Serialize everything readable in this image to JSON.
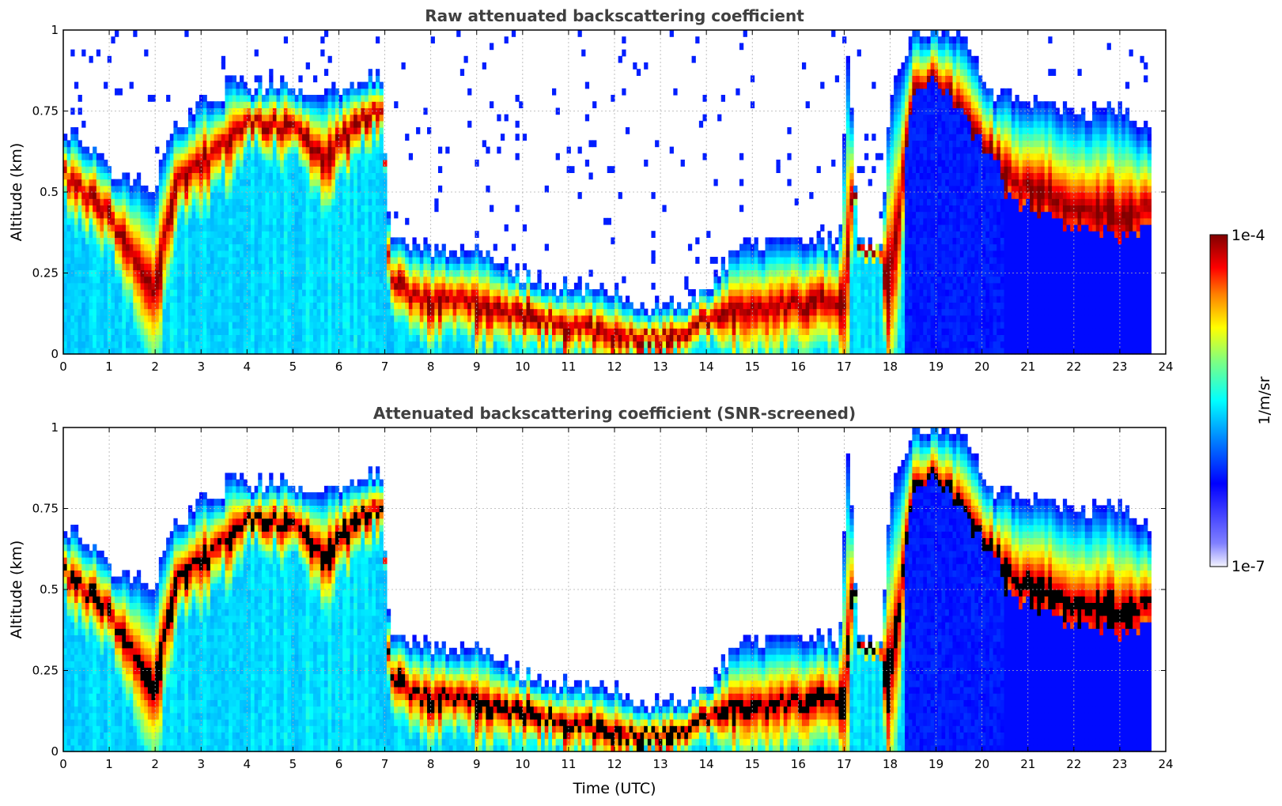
{
  "chart_data": [
    {
      "type": "heatmap",
      "title": "Raw attenuated backscattering coefficient",
      "xlabel": "",
      "ylabel": "Altitude (km)",
      "xlim": [
        0,
        24
      ],
      "ylim": [
        0,
        1
      ],
      "xticks": [
        "0",
        "1",
        "2",
        "3",
        "4",
        "5",
        "6",
        "7",
        "8",
        "9",
        "10",
        "11",
        "12",
        "13",
        "14",
        "15",
        "16",
        "17",
        "18",
        "19",
        "20",
        "21",
        "22",
        "23",
        "24"
      ],
      "yticks": [
        "0",
        "0.25",
        "0.5",
        "0.75",
        "1"
      ],
      "grid": true,
      "layer_top_km": [
        [
          0,
          0.7
        ],
        [
          0.5,
          0.66
        ],
        [
          1,
          0.56
        ],
        [
          1.5,
          0.55
        ],
        [
          2,
          0.5
        ],
        [
          2.3,
          0.68
        ],
        [
          3,
          0.78
        ],
        [
          3.5,
          0.8
        ],
        [
          3.6,
          0.86
        ],
        [
          4,
          0.82
        ],
        [
          4.5,
          0.84
        ],
        [
          5,
          0.82
        ],
        [
          5.5,
          0.78
        ],
        [
          6,
          0.82
        ],
        [
          6.5,
          0.86
        ],
        [
          6.9,
          0.86
        ],
        [
          7.1,
          0.38
        ],
        [
          8,
          0.33
        ],
        [
          9,
          0.32
        ],
        [
          10,
          0.24
        ],
        [
          11,
          0.21
        ],
        [
          12,
          0.19
        ],
        [
          13,
          0.14
        ],
        [
          13.5,
          0.15
        ],
        [
          14,
          0.2
        ],
        [
          14.5,
          0.3
        ],
        [
          15,
          0.34
        ],
        [
          16,
          0.34
        ],
        [
          16.9,
          0.36
        ],
        [
          17.1,
          0.95
        ],
        [
          17.3,
          0.35
        ],
        [
          17.8,
          0.34
        ],
        [
          18,
          0.8
        ],
        [
          18.5,
          1.0
        ],
        [
          19.5,
          1.0
        ],
        [
          20,
          0.85
        ],
        [
          20.3,
          0.8
        ],
        [
          21,
          0.78
        ],
        [
          22,
          0.75
        ],
        [
          23,
          0.76
        ],
        [
          23.7,
          0.68
        ]
      ],
      "layer_peak_km": [
        [
          0,
          0.56
        ],
        [
          1,
          0.42
        ],
        [
          2,
          0.2
        ],
        [
          2.5,
          0.55
        ],
        [
          3,
          0.58
        ],
        [
          3.5,
          0.64
        ],
        [
          4,
          0.72
        ],
        [
          5,
          0.7
        ],
        [
          5.6,
          0.6
        ],
        [
          6.5,
          0.72
        ],
        [
          7,
          0.75
        ],
        [
          7.1,
          0.22
        ],
        [
          8,
          0.16
        ],
        [
          9,
          0.15
        ],
        [
          10,
          0.12
        ],
        [
          11,
          0.08
        ],
        [
          12,
          0.06
        ],
        [
          13,
          0.04
        ],
        [
          14,
          0.1
        ],
        [
          15,
          0.14
        ],
        [
          16,
          0.15
        ],
        [
          17,
          0.15
        ],
        [
          17.2,
          0.55
        ],
        [
          18,
          0.2
        ],
        [
          18.5,
          0.8
        ],
        [
          19,
          0.85
        ],
        [
          20.5,
          0.55
        ],
        [
          21,
          0.5
        ],
        [
          22,
          0.45
        ],
        [
          23,
          0.42
        ],
        [
          23.7,
          0.45
        ]
      ]
    },
    {
      "type": "heatmap",
      "title": "Attenuated backscattering coefficient (SNR-screened)",
      "xlabel": "Time (UTC)",
      "ylabel": "Altitude (km)",
      "xlim": [
        0,
        24
      ],
      "ylim": [
        0,
        1
      ],
      "xticks": [
        "0",
        "1",
        "2",
        "3",
        "4",
        "5",
        "6",
        "7",
        "8",
        "9",
        "10",
        "11",
        "12",
        "13",
        "14",
        "15",
        "16",
        "17",
        "18",
        "19",
        "20",
        "21",
        "22",
        "23",
        "24"
      ],
      "yticks": [
        "0",
        "0.25",
        "0.5",
        "0.75",
        "1"
      ],
      "grid": true,
      "screened_value": "black"
    }
  ],
  "colorbar": {
    "label": "1/m/sr",
    "max_label": "1e-4",
    "min_label": "1e-7",
    "colormap": [
      "#f0f0ff",
      "#0000ff",
      "#00ffff",
      "#ffff00",
      "#ff0000",
      "#800000"
    ]
  }
}
